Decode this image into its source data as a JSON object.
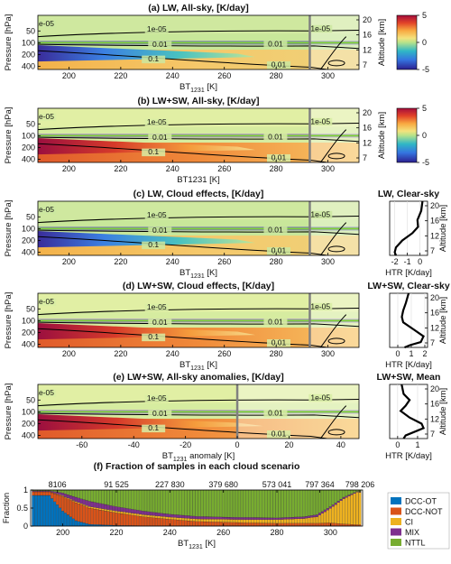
{
  "chart_data": [
    {
      "id": "a",
      "type": "heatmap",
      "title": "(a) LW, All-sky, [K/day]",
      "ylabel": "Pressure [hPa]",
      "y2label": "Altitude [km]",
      "xlabel": "BT",
      "xlabel_sub": "1231",
      "xlabel_unit": " [K]",
      "xlim": [
        188,
        312
      ],
      "xticks": [
        200,
        220,
        240,
        260,
        280,
        300
      ],
      "yticks": [
        50,
        100,
        200,
        400
      ],
      "y2ticks": [
        20,
        16,
        12,
        7
      ],
      "colorbar": {
        "ticks": [
          5,
          0,
          -5
        ],
        "range": [
          -5,
          5
        ]
      },
      "contour_labels": [
        "1e-05",
        "1e-05",
        "1e-05",
        "0.01",
        "0.01",
        "0.1",
        "0.01"
      ],
      "vline_x": 293
    },
    {
      "id": "b",
      "type": "heatmap",
      "title": "(b) LW+SW, All-sky, [K/day]",
      "ylabel": "Pressure [hPa]",
      "y2label": "Altitude [km]",
      "xlabel": "BT1231 [K]",
      "xlim": [
        188,
        312
      ],
      "xticks": [
        200,
        220,
        240,
        260,
        280,
        300
      ],
      "yticks": [
        50,
        100,
        200,
        400
      ],
      "y2ticks": [
        20,
        16,
        12,
        7
      ],
      "colorbar": {
        "ticks": [
          5,
          0,
          -5
        ],
        "range": [
          -5,
          5
        ]
      },
      "contour_labels": [
        "1e-05",
        "1e-05",
        "1e-05",
        "0.01",
        "0.01",
        "0.1",
        "0.01"
      ],
      "vline_x": 293
    },
    {
      "id": "c",
      "type": "heatmap",
      "title": "(c) LW, Cloud effects, [K/day]",
      "side_title": "LW, Clear-sky",
      "ylabel": "Pressure [hPa]",
      "xlabel": "BT",
      "xlabel_sub": "1231",
      "xlabel_unit": " [K]",
      "xlim": [
        188,
        312
      ],
      "xticks": [
        200,
        220,
        240,
        260,
        280,
        300
      ],
      "yticks": [
        50,
        100,
        200,
        400
      ],
      "contour_labels": [
        "1e-05",
        "1e-05",
        "1e-05",
        "0.01",
        "0.01",
        "0.1",
        "0.01"
      ],
      "vline_x": 293,
      "profile": {
        "xlabel": "HTR [K/day]",
        "xticks": [
          -2,
          -1,
          0
        ],
        "xlim": [
          -2.4,
          0.6
        ],
        "y2label": "Altitude [km]",
        "y2ticks": [
          20,
          16,
          12,
          7
        ]
      }
    },
    {
      "id": "d",
      "type": "heatmap",
      "title": "(d) LW+SW, Cloud effects, [K/day]",
      "side_title": "LW+SW, Clear-sky",
      "ylabel": "Pressure [hPa]",
      "xlabel": "BT",
      "xlabel_sub": "1231",
      "xlabel_unit": " [K]",
      "xlim": [
        188,
        312
      ],
      "xticks": [
        200,
        220,
        240,
        260,
        280,
        300
      ],
      "yticks": [
        50,
        100,
        200,
        400
      ],
      "contour_labels": [
        "1e-05",
        "1e-05",
        "1e-05",
        "0.01",
        "0.01",
        "0.1",
        "0.01"
      ],
      "vline_x": 293,
      "profile": {
        "xlabel": "HTR [K/day]",
        "xticks": [
          0,
          1,
          2
        ],
        "xlim": [
          -0.6,
          2.2
        ],
        "y2label": "Altitude [km]",
        "y2ticks": [
          20,
          16,
          12,
          7
        ]
      }
    },
    {
      "id": "e",
      "type": "heatmap",
      "title": "(e) LW+SW, All-sky anomalies, [K/day]",
      "side_title": "LW+SW, Mean",
      "ylabel": "Pressure [hPa]",
      "xlabel": "BT",
      "xlabel_sub": "1231",
      "xlabel_unit": " anomaly [K]",
      "xlim": [
        -77,
        47
      ],
      "xticks": [
        -60,
        -40,
        -20,
        0,
        20,
        40
      ],
      "yticks": [
        50,
        100,
        200,
        400
      ],
      "contour_labels": [
        "1e-05",
        "1e-05",
        "1e-05",
        "0.01",
        "0.01",
        "0.1",
        "0.01"
      ],
      "vline_x": 0,
      "profile": {
        "xlabel": "HTR [K/day]",
        "xticks": [
          0,
          1
        ],
        "xlim": [
          -0.4,
          1.5
        ],
        "y2label": "Altitude [km]",
        "y2ticks": [
          20,
          16,
          12,
          7
        ]
      }
    },
    {
      "id": "f",
      "type": "bar",
      "stacked": true,
      "title": "(f) Fraction of samples in each cloud scenario",
      "ylabel": "Fraction",
      "xlabel": "BT",
      "xlabel_sub": "1231",
      "xlabel_unit": " [K]",
      "xlim": [
        188,
        312
      ],
      "ylim": [
        0,
        1
      ],
      "xticks": [
        200,
        220,
        240,
        260,
        280,
        300
      ],
      "yticks": [
        0,
        0.5,
        1
      ],
      "counts": [
        {
          "x": 198,
          "label": "8106"
        },
        {
          "x": 220,
          "label": "91 525"
        },
        {
          "x": 240,
          "label": "227 830"
        },
        {
          "x": 260,
          "label": "379 680"
        },
        {
          "x": 280,
          "label": "573 041"
        },
        {
          "x": 296,
          "label": "797 364"
        },
        {
          "x": 311,
          "label": "798 206"
        }
      ],
      "x": [
        195,
        200,
        205,
        210,
        220,
        230,
        240,
        250,
        260,
        270,
        280,
        290,
        295,
        300,
        305,
        310
      ],
      "series": [
        {
          "name": "DCC-OT",
          "color": "#0072bd",
          "values": [
            0.85,
            0.42,
            0.15,
            0.05,
            0.02,
            0.01,
            0.01,
            0.01,
            0.01,
            0.01,
            0.01,
            0.01,
            0.01,
            0.01,
            0.01,
            0.01
          ]
        },
        {
          "name": "DCC-NOT",
          "color": "#d95319",
          "values": [
            0.1,
            0.4,
            0.5,
            0.45,
            0.35,
            0.25,
            0.18,
            0.12,
            0.1,
            0.08,
            0.07,
            0.07,
            0.07,
            0.08,
            0.05,
            0.03
          ]
        },
        {
          "name": "CI",
          "color": "#edb120",
          "values": [
            0.01,
            0.02,
            0.03,
            0.04,
            0.05,
            0.06,
            0.06,
            0.07,
            0.08,
            0.09,
            0.1,
            0.13,
            0.18,
            0.4,
            0.7,
            0.9
          ]
        },
        {
          "name": "MIX",
          "color": "#7e2f8e",
          "values": [
            0.02,
            0.08,
            0.12,
            0.15,
            0.12,
            0.1,
            0.08,
            0.07,
            0.06,
            0.06,
            0.05,
            0.05,
            0.06,
            0.05,
            0.04,
            0.02
          ]
        },
        {
          "name": "NTTL",
          "color": "#77ac30",
          "values": [
            0.02,
            0.08,
            0.2,
            0.31,
            0.46,
            0.58,
            0.67,
            0.73,
            0.75,
            0.76,
            0.77,
            0.74,
            0.68,
            0.46,
            0.2,
            0.04
          ]
        }
      ]
    }
  ]
}
